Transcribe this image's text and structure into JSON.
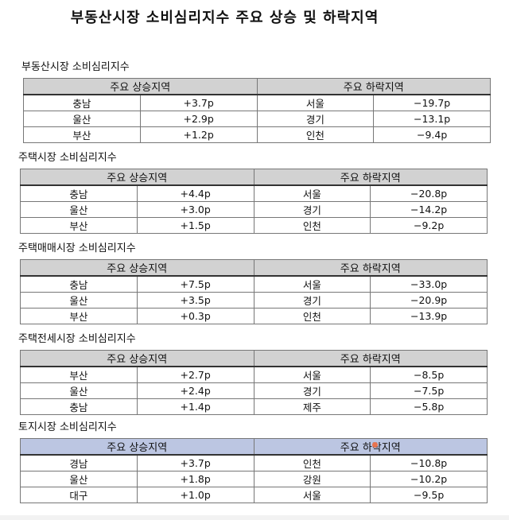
{
  "title": "부동산시장 소비심리지수 주요 상승 및 하락지역",
  "header_rise": "주요 상승지역",
  "header_fall": "주요 하락지역",
  "sections": [
    {
      "title": "부동산시장 소비심리지수",
      "header_color": "#d2d2d2",
      "rows": [
        [
          "충남",
          "+3.7p",
          "서울",
          "−19.7p"
        ],
        [
          "울산",
          "+2.9p",
          "경기",
          "−13.1p"
        ],
        [
          "부산",
          "+1.2p",
          "인천",
          "−9.4p"
        ]
      ]
    },
    {
      "title": "주택시장 소비심리지수",
      "header_color": "#d2d2d2",
      "rows": [
        [
          "충남",
          "+4.4p",
          "서울",
          "−20.8p"
        ],
        [
          "울산",
          "+3.0p",
          "경기",
          "−14.2p"
        ],
        [
          "부산",
          "+1.5p",
          "인천",
          "−9.2p"
        ]
      ]
    },
    {
      "title": "주택매매시장 소비심리지수",
      "header_color": "#d2d2d2",
      "rows": [
        [
          "충남",
          "+7.5p",
          "서울",
          "−33.0p"
        ],
        [
          "울산",
          "+3.5p",
          "경기",
          "−20.9p"
        ],
        [
          "부산",
          "+0.3p",
          "인천",
          "−13.9p"
        ]
      ]
    },
    {
      "title": "주택전세시장 소비심리지수",
      "header_color": "#d2d2d2",
      "rows": [
        [
          "부산",
          "+2.7p",
          "서울",
          "−8.5p"
        ],
        [
          "울산",
          "+2.4p",
          "경기",
          "−7.5p"
        ],
        [
          "충남",
          "+1.4p",
          "제주",
          "−5.8p"
        ]
      ]
    },
    {
      "title": "토지시장 소비심리지수",
      "header_color": "#bcc6e2",
      "rows": [
        [
          "경남",
          "+3.7p",
          "인천",
          "−10.8p"
        ],
        [
          "울산",
          "+1.8p",
          "강원",
          "−10.2p"
        ],
        [
          "대구",
          "+1.0p",
          "서울",
          "−9.5p"
        ]
      ]
    }
  ]
}
